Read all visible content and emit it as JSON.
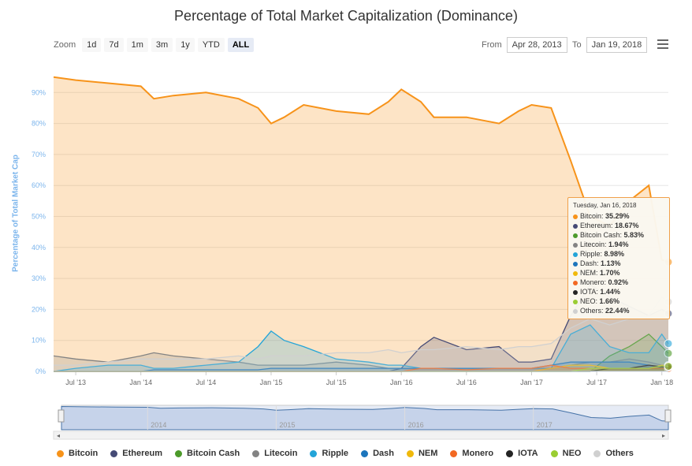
{
  "title": "Percentage of Total Market Capitalization (Dominance)",
  "zoom": {
    "label": "Zoom",
    "buttons": [
      "1d",
      "7d",
      "1m",
      "3m",
      "1y",
      "YTD",
      "ALL"
    ],
    "active": "ALL"
  },
  "range": {
    "from_label": "From",
    "from_value": "Apr 28, 2013",
    "to_label": "To",
    "to_value": "Jan 19, 2018"
  },
  "chart_data": {
    "type": "area",
    "title": "Percentage of Total Market Capitalization (Dominance)",
    "ylabel": "Percentage of Total Market Cap",
    "ylim": [
      0,
      100
    ],
    "yticks": [
      "0%",
      "10%",
      "20%",
      "30%",
      "40%",
      "50%",
      "60%",
      "70%",
      "80%",
      "90%"
    ],
    "xticks": [
      "Jul '13",
      "Jan '14",
      "Jul '14",
      "Jan '15",
      "Jul '15",
      "Jan '16",
      "Jul '16",
      "Jan '17",
      "Jul '17",
      "Jan '18"
    ],
    "navigator_years": [
      "2014",
      "2015",
      "2016",
      "2017"
    ],
    "x": [
      2013.33,
      2013.5,
      2013.75,
      2014.0,
      2014.1,
      2014.25,
      2014.5,
      2014.75,
      2014.9,
      2015.0,
      2015.1,
      2015.25,
      2015.5,
      2015.75,
      2015.9,
      2016.0,
      2016.15,
      2016.25,
      2016.5,
      2016.75,
      2016.9,
      2017.0,
      2017.15,
      2017.3,
      2017.45,
      2017.6,
      2017.75,
      2017.9,
      2018.0,
      2018.05
    ],
    "series": [
      {
        "name": "Bitcoin",
        "color": "#f7931a",
        "values": [
          95,
          94,
          93,
          92,
          88,
          89,
          90,
          88,
          85,
          80,
          82,
          86,
          84,
          83,
          87,
          91,
          87,
          82,
          82,
          80,
          84,
          86,
          85,
          68,
          50,
          47,
          55,
          60,
          36,
          35.29
        ]
      },
      {
        "name": "Ethereum",
        "color": "#454a75",
        "values": [
          0,
          0,
          0,
          0,
          0,
          0,
          0,
          0,
          0,
          0,
          0,
          0,
          0,
          0,
          0,
          1,
          8,
          11,
          7,
          8,
          3,
          3,
          4,
          18,
          28,
          24,
          21,
          18,
          20,
          18.67
        ]
      },
      {
        "name": "Bitcoin Cash",
        "color": "#4c9a2a",
        "values": [
          0,
          0,
          0,
          0,
          0,
          0,
          0,
          0,
          0,
          0,
          0,
          0,
          0,
          0,
          0,
          0,
          0,
          0,
          0,
          0,
          0,
          0,
          0,
          0,
          0,
          5,
          8,
          12,
          8,
          5.83
        ]
      },
      {
        "name": "Litecoin",
        "color": "#838383",
        "values": [
          5,
          4,
          3,
          5,
          6,
          5,
          4,
          3,
          2,
          2,
          2,
          2,
          3,
          2,
          1,
          1,
          1,
          1,
          1,
          1,
          1,
          1,
          1,
          2,
          3,
          3,
          4,
          3,
          2,
          1.94
        ]
      },
      {
        "name": "Ripple",
        "color": "#23a4d8",
        "values": [
          0,
          1,
          2,
          2,
          1,
          1,
          2,
          3,
          8,
          13,
          10,
          8,
          4,
          3,
          2,
          2,
          1,
          1,
          1,
          1,
          1,
          1,
          1,
          12,
          15,
          8,
          6,
          6,
          12,
          8.98
        ]
      },
      {
        "name": "Dash",
        "color": "#1c75bc",
        "values": [
          0,
          0,
          0,
          0,
          0.5,
          0.5,
          0.5,
          0.5,
          0.5,
          1,
          1,
          1,
          1,
          1,
          1,
          1,
          1,
          1,
          1,
          1,
          1,
          1,
          2,
          3,
          3,
          3,
          3,
          2,
          1.2,
          1.13
        ]
      },
      {
        "name": "NEM",
        "color": "#f0b90b",
        "values": [
          0,
          0,
          0,
          0,
          0,
          0,
          0,
          0,
          0,
          0,
          0,
          0,
          0,
          0,
          0,
          0,
          0,
          0,
          0,
          0,
          0,
          0,
          1,
          2,
          2,
          1,
          1,
          1,
          2,
          1.7
        ]
      },
      {
        "name": "Monero",
        "color": "#f26822",
        "values": [
          0,
          0,
          0,
          0,
          0,
          0,
          0,
          0,
          0,
          0,
          0,
          0,
          0,
          0,
          0,
          0,
          1,
          1,
          0.5,
          1,
          1,
          1,
          2,
          1,
          1,
          1,
          1,
          1,
          1,
          0.92
        ]
      },
      {
        "name": "IOTA",
        "color": "#242424",
        "values": [
          0,
          0,
          0,
          0,
          0,
          0,
          0,
          0,
          0,
          0,
          0,
          0,
          0,
          0,
          0,
          0,
          0,
          0,
          0,
          0,
          0,
          0,
          0,
          0,
          0,
          1,
          1,
          2,
          1.5,
          1.44
        ]
      },
      {
        "name": "NEO",
        "color": "#9acd32",
        "values": [
          0,
          0,
          0,
          0,
          0,
          0,
          0,
          0,
          0,
          0,
          0,
          0,
          0,
          0,
          0,
          0,
          0,
          0,
          0,
          0,
          0,
          0,
          0,
          0,
          1,
          1,
          1,
          1,
          1.8,
          1.66
        ]
      },
      {
        "name": "Others",
        "color": "#d0d0d0",
        "values": [
          2,
          2,
          3,
          4,
          4,
          4,
          4,
          5,
          4,
          5,
          5,
          5,
          6,
          6,
          7,
          6,
          7,
          7,
          8,
          7,
          8,
          8,
          9,
          14,
          17,
          15,
          17,
          18,
          24,
          22.44
        ]
      }
    ],
    "tooltip": {
      "date": "Tuesday, Jan 16, 2018",
      "items": [
        {
          "name": "Bitcoin",
          "value": "35.29%"
        },
        {
          "name": "Ethereum",
          "value": "18.67%"
        },
        {
          "name": "Bitcoin Cash",
          "value": "5.83%"
        },
        {
          "name": "Litecoin",
          "value": "1.94%"
        },
        {
          "name": "Ripple",
          "value": "8.98%"
        },
        {
          "name": "Dash",
          "value": "1.13%"
        },
        {
          "name": "NEM",
          "value": "1.70%"
        },
        {
          "name": "Monero",
          "value": "0.92%"
        },
        {
          "name": "IOTA",
          "value": "1.44%"
        },
        {
          "name": "NEO",
          "value": "1.66%"
        },
        {
          "name": "Others",
          "value": "22.44%"
        }
      ]
    },
    "legend_position": "bottom"
  }
}
